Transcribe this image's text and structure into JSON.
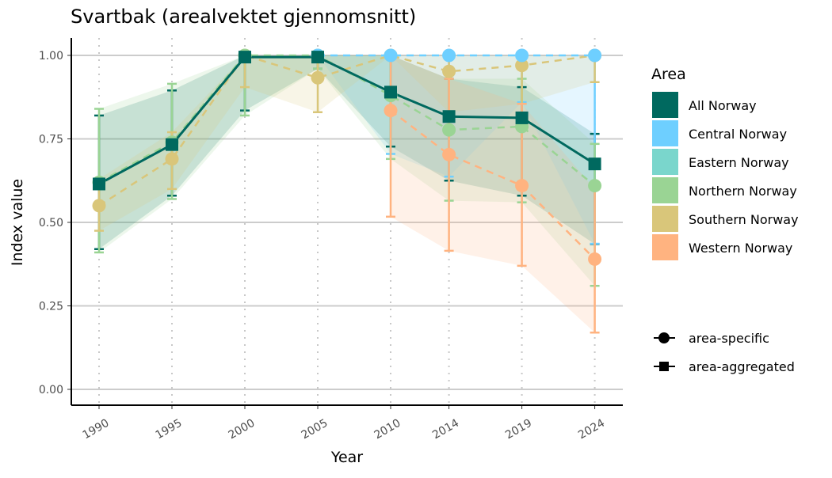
{
  "chart_data": {
    "type": "line",
    "title": "Svartbak (arealvektet gjennomsnitt)",
    "xlabel": "Year",
    "ylabel": "Index value",
    "x": [
      1990,
      1995,
      2000,
      2005,
      2010,
      2014,
      2019,
      2024
    ],
    "x_tick_labels": [
      "1990",
      "1995",
      "2000",
      "2005",
      "2010",
      "2014",
      "2019",
      "2024"
    ],
    "ylim": [
      0,
      1
    ],
    "y_ticks": [
      0,
      0.25,
      0.5,
      0.75,
      1.0
    ],
    "y_tick_labels": [
      "0.00",
      "0.25",
      "0.50",
      "0.75",
      "1.00"
    ],
    "grid": "horizontal major lines, dotted vertical lines at years",
    "legend_placement": "right",
    "legend_title": "Area",
    "shape_legend": [
      {
        "label": "area-specific",
        "shape": "circle"
      },
      {
        "label": "area-aggregated",
        "shape": "square"
      }
    ],
    "series": [
      {
        "name": "All Norway",
        "color": "#00695f",
        "shape": "square",
        "dash": false,
        "values": [
          0.615,
          0.733,
          0.995,
          0.995,
          0.89,
          0.817,
          0.813,
          0.675
        ],
        "lower": [
          0.42,
          0.58,
          0.835,
          0.96,
          0.727,
          0.625,
          0.58,
          0.435
        ],
        "upper": [
          0.82,
          0.895,
          1.0,
          1.0,
          1.0,
          0.93,
          0.905,
          0.765
        ]
      },
      {
        "name": "Central Norway",
        "color": "#6ecfff",
        "shape": "circle",
        "dash": true,
        "values": [
          null,
          null,
          null,
          1.0,
          1.0,
          1.0,
          1.0,
          1.0
        ],
        "lower": [
          null,
          null,
          null,
          1.0,
          0.705,
          0.637,
          0.86,
          0.436
        ],
        "upper": [
          null,
          null,
          null,
          1.0,
          1.0,
          1.0,
          1.0,
          1.0
        ]
      },
      {
        "name": "Eastern Norway",
        "color": "#7ad6cc",
        "shape": "circle",
        "dash": true,
        "values": [
          null,
          null,
          null,
          null,
          null,
          null,
          null,
          null
        ],
        "lower": [
          null,
          null,
          null,
          null,
          null,
          null,
          null,
          null
        ],
        "upper": [
          null,
          null,
          null,
          null,
          null,
          null,
          null,
          null
        ]
      },
      {
        "name": "Northern Norway",
        "color": "#9ad494",
        "shape": "circle",
        "dash": true,
        "values": [
          0.62,
          0.74,
          1.0,
          1.0,
          0.88,
          0.777,
          0.787,
          0.61
        ],
        "lower": [
          0.41,
          0.57,
          0.82,
          0.96,
          0.69,
          0.565,
          0.56,
          0.31
        ],
        "upper": [
          0.84,
          0.915,
          1.0,
          1.0,
          1.0,
          0.93,
          0.93,
          0.735
        ]
      },
      {
        "name": "Southern Norway",
        "color": "#d9c67a",
        "shape": "circle",
        "dash": true,
        "values": [
          0.55,
          0.69,
          1.0,
          0.933,
          1.0,
          0.952,
          0.97,
          1.0
        ],
        "lower": [
          0.475,
          0.6,
          0.905,
          0.83,
          1.0,
          0.83,
          0.855,
          0.92
        ],
        "upper": [
          0.63,
          0.77,
          1.0,
          1.0,
          1.0,
          1.0,
          1.0,
          1.0
        ]
      },
      {
        "name": "Western Norway",
        "color": "#ffb380",
        "shape": "circle",
        "dash": true,
        "values": [
          null,
          null,
          null,
          null,
          0.835,
          0.703,
          0.61,
          0.39
        ],
        "lower": [
          null,
          null,
          null,
          null,
          0.517,
          0.415,
          0.37,
          0.17
        ],
        "upper": [
          null,
          null,
          null,
          null,
          1.0,
          0.93,
          0.855,
          0.6
        ]
      }
    ]
  }
}
